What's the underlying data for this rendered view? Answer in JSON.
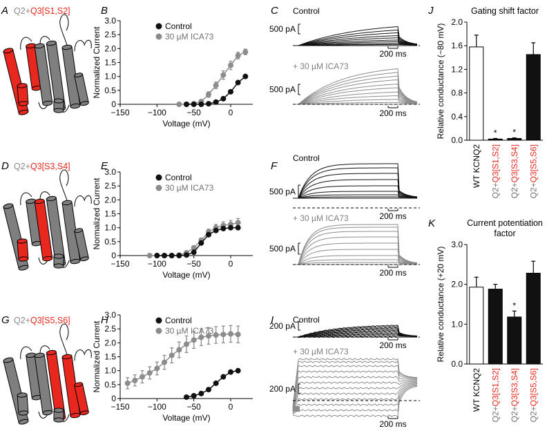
{
  "colors": {
    "black": "#111111",
    "grey": "#8c8c8c",
    "red": "#e8281e",
    "model_grey": "#7f7f7f",
    "white_bar": "#ffffff"
  },
  "panel_labels": {
    "A": "A",
    "B": "B",
    "C": "C",
    "D": "D",
    "E": "E",
    "F": "F",
    "G": "G",
    "H": "H",
    "I": "I",
    "J": "J",
    "K": "K"
  },
  "constructs": {
    "A": {
      "prefix": "Q2+",
      "suffix": "Q3[S1,S2]"
    },
    "D": {
      "prefix": "Q2+",
      "suffix": "Q3[S3,S4]"
    },
    "G": {
      "prefix": "Q2+",
      "suffix": "Q3[S5,S6]"
    }
  },
  "trace_labels": {
    "control": "Control",
    "ica": "+ 30 µM ICA73",
    "C_scale_current": "500 pA",
    "F_scale_current": "500 pA",
    "I_scale_current": "200 pA",
    "scale_time": "200 ms"
  },
  "chart_data": [
    {
      "id": "B",
      "type": "line",
      "xlabel": "Voltage (mV)",
      "ylabel": "Normalized Current",
      "xlim": [
        -150,
        30
      ],
      "ylim": [
        0,
        3.0
      ],
      "xticks": [
        "−150",
        "−100",
        "−50",
        "0"
      ],
      "yticks": [
        "0",
        "0.5",
        "1.0",
        "1.5",
        "2.0",
        "2.5",
        "3.0"
      ],
      "legend": [
        "Control",
        "30 µM ICA73"
      ],
      "legend_position": "top-left",
      "series": [
        {
          "name": "Control",
          "color": "black",
          "x": [
            -60,
            -50,
            -40,
            -30,
            -20,
            -10,
            0,
            10,
            20
          ],
          "y": [
            0,
            0,
            0,
            0.02,
            0.08,
            0.2,
            0.45,
            0.78,
            1.0
          ],
          "err": [
            0,
            0,
            0,
            0.01,
            0.02,
            0.03,
            0.05,
            0.06,
            0.05
          ]
        },
        {
          "name": "30 µM ICA73",
          "color": "grey",
          "x": [
            -70,
            -60,
            -50,
            -40,
            -30,
            -20,
            -10,
            0,
            10,
            20
          ],
          "y": [
            0,
            0,
            0.02,
            0.1,
            0.35,
            0.68,
            1.05,
            1.4,
            1.75,
            1.88
          ],
          "err": [
            0,
            0,
            0.02,
            0.05,
            0.1,
            0.12,
            0.15,
            0.15,
            0.12,
            0.1
          ]
        }
      ]
    },
    {
      "id": "E",
      "type": "line",
      "xlabel": "Voltage (mV)",
      "ylabel": "Normalized Current",
      "xlim": [
        -150,
        30
      ],
      "ylim": [
        0,
        3.0
      ],
      "xticks": [
        "−150",
        "−100",
        "−50",
        "0"
      ],
      "yticks": [
        "0",
        "0.5",
        "1.0",
        "1.5",
        "2.0",
        "2.5",
        "3.0"
      ],
      "legend": [
        "Control",
        "30 µM ICA73"
      ],
      "legend_position": "top-left",
      "series": [
        {
          "name": "Control",
          "color": "black",
          "x": [
            -100,
            -90,
            -80,
            -70,
            -60,
            -50,
            -40,
            -30,
            -20,
            -10,
            0,
            10
          ],
          "y": [
            0,
            0,
            0,
            0,
            0.02,
            0.12,
            0.45,
            0.75,
            0.9,
            0.97,
            1.0,
            1.0
          ],
          "err": [
            0,
            0,
            0,
            0,
            0.01,
            0.02,
            0.04,
            0.05,
            0.05,
            0.05,
            0.05,
            0.05
          ]
        },
        {
          "name": "30 µM ICA73",
          "color": "grey",
          "x": [
            -110,
            -100,
            -90,
            -80,
            -70,
            -60,
            -50,
            -40,
            -30,
            -20,
            -10,
            0,
            10
          ],
          "y": [
            0,
            0,
            0,
            0,
            0.02,
            0.1,
            0.28,
            0.55,
            0.85,
            1.0,
            1.08,
            1.12,
            1.18
          ],
          "err": [
            0,
            0,
            0,
            0,
            0.01,
            0.02,
            0.05,
            0.08,
            0.1,
            0.12,
            0.13,
            0.14,
            0.15
          ]
        }
      ]
    },
    {
      "id": "H",
      "type": "line",
      "xlabel": "Voltage (mV)",
      "ylabel": "Normalized Current",
      "xlim": [
        -150,
        30
      ],
      "ylim": [
        0,
        3.0
      ],
      "xticks": [
        "−150",
        "−100",
        "−50",
        "0"
      ],
      "yticks": [
        "0",
        "0.5",
        "1.0",
        "1.5",
        "2.0",
        "2.5",
        "3.0"
      ],
      "legend": [
        "Control",
        "30 µM ICA73"
      ],
      "legend_position": "top-left",
      "series": [
        {
          "name": "Control",
          "color": "black",
          "x": [
            -60,
            -50,
            -40,
            -30,
            -20,
            -10,
            0,
            10
          ],
          "y": [
            0.05,
            0.1,
            0.18,
            0.32,
            0.55,
            0.78,
            0.95,
            1.0
          ],
          "err": [
            0.02,
            0.03,
            0.04,
            0.05,
            0.06,
            0.06,
            0.05,
            0.05
          ]
        },
        {
          "name": "30 µM ICA73",
          "color": "grey",
          "x": [
            -140,
            -130,
            -120,
            -110,
            -100,
            -90,
            -80,
            -70,
            -60,
            -50,
            -40,
            -30,
            -20,
            -10,
            0,
            10
          ],
          "y": [
            0.55,
            0.65,
            0.78,
            0.92,
            1.08,
            1.3,
            1.55,
            1.75,
            1.95,
            2.1,
            2.2,
            2.25,
            2.28,
            2.3,
            2.32,
            2.3
          ],
          "err": [
            0.2,
            0.2,
            0.22,
            0.22,
            0.23,
            0.25,
            0.27,
            0.28,
            0.3,
            0.3,
            0.3,
            0.3,
            0.3,
            0.3,
            0.3,
            0.3
          ]
        }
      ]
    },
    {
      "id": "J",
      "type": "bar",
      "title": "Gating shift factor",
      "ylabel": "Relative conductance (−80 mV)",
      "ylim": [
        0,
        2.0
      ],
      "yticks": [
        "0.0",
        "0.4",
        "0.8",
        "1.2",
        "1.6",
        "2.0"
      ],
      "categories": [
        {
          "prefix": "",
          "label": "WT KCNQ2",
          "fill": "white"
        },
        {
          "prefix": "Q2+",
          "label": "Q3[S1,S2]",
          "fill": "black"
        },
        {
          "prefix": "Q2+",
          "label": "Q3[S3,S4]",
          "fill": "black"
        },
        {
          "prefix": "Q2+",
          "label": "Q3[S5,S6]",
          "fill": "black"
        }
      ],
      "values": [
        1.58,
        0.02,
        0.03,
        1.45
      ],
      "errors": [
        0.2,
        0.01,
        0.01,
        0.2
      ],
      "significance": [
        "",
        "*",
        "*",
        ""
      ]
    },
    {
      "id": "K",
      "type": "bar",
      "title": "Current potentiation factor",
      "title_lines": [
        "Current potentiation",
        "factor"
      ],
      "ylabel": "Relative conductance (+20 mV)",
      "ylim": [
        0,
        3.0
      ],
      "yticks": [
        "0.0",
        "1.0",
        "2.0",
        "3.0"
      ],
      "categories": [
        {
          "prefix": "",
          "label": "WT KCNQ2",
          "fill": "white"
        },
        {
          "prefix": "Q2+",
          "label": "Q3[S1,S2]",
          "fill": "black"
        },
        {
          "prefix": "Q2+",
          "label": "Q3[S3,S4]",
          "fill": "black"
        },
        {
          "prefix": "Q2+",
          "label": "Q3[S5,S6]",
          "fill": "black"
        }
      ],
      "values": [
        1.93,
        1.88,
        1.18,
        2.28
      ],
      "errors": [
        0.25,
        0.12,
        0.15,
        0.3
      ],
      "significance": [
        "",
        "",
        "*",
        ""
      ]
    }
  ]
}
